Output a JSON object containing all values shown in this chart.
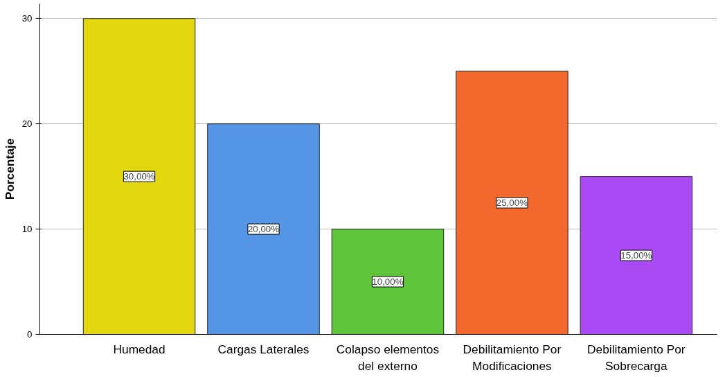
{
  "chart_data": {
    "type": "bar",
    "ylabel": "Porcentaje",
    "categories": [
      "Humedad",
      "Cargas Laterales",
      "Colapso elementos del externo",
      "Debilitamiento Por Modificaciones",
      "Debilitamiento Por Sobrecarga"
    ],
    "values": [
      30,
      20,
      10,
      25,
      15
    ],
    "colors": [
      "#e3d70f",
      "#5596e6",
      "#5ec43a",
      "#f3682c",
      "#a94af5"
    ],
    "value_labels": [
      "30,00%",
      "20,00%",
      "10,00%",
      "25,00%",
      "15,00%"
    ],
    "ylim": [
      0,
      31.4
    ],
    "yticks": [
      0,
      10,
      20,
      30
    ],
    "grid": "y"
  }
}
